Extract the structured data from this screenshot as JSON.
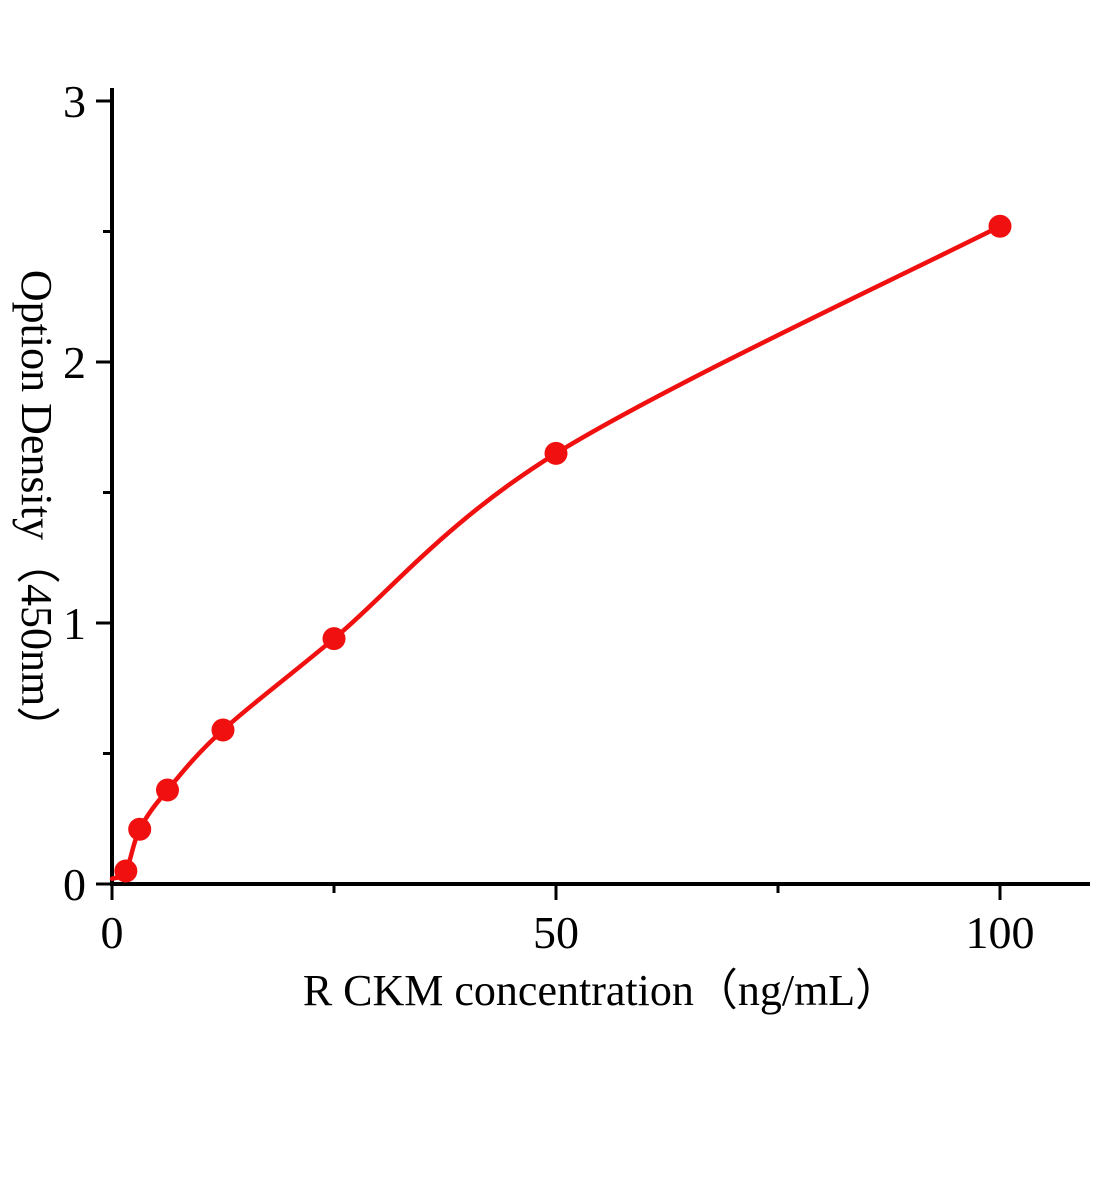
{
  "figure": {
    "background": "#ffffff"
  },
  "chart_data": {
    "type": "scatter",
    "title": "",
    "xlabel": "R CKM concentration（ng/mL）",
    "ylabel": "Option Density（450nm）",
    "xlim": [
      0,
      100
    ],
    "ylim": [
      0,
      3
    ],
    "x_major_ticks": [
      0,
      50,
      100
    ],
    "x_tick_labels": [
      "0",
      "50",
      "100"
    ],
    "x_minor_ticks": [
      25,
      75
    ],
    "y_major_ticks": [
      0,
      1,
      2,
      3
    ],
    "y_tick_labels": [
      "0",
      "1",
      "2",
      "3"
    ],
    "y_minor_ticks": [
      0.5,
      1.5,
      2.5
    ],
    "grid": false,
    "legend": false,
    "points": [
      {
        "x": 1.56,
        "y": 0.05
      },
      {
        "x": 3.12,
        "y": 0.21
      },
      {
        "x": 6.25,
        "y": 0.36
      },
      {
        "x": 12.5,
        "y": 0.59
      },
      {
        "x": 25,
        "y": 0.94
      },
      {
        "x": 50,
        "y": 1.65
      },
      {
        "x": 100,
        "y": 2.52
      }
    ],
    "curve_start": {
      "x": 0,
      "y": 0.02
    },
    "series_color": "#f01010",
    "axis_color": "#000000",
    "marker_radius": 11.5,
    "curve_width": 4.5
  }
}
